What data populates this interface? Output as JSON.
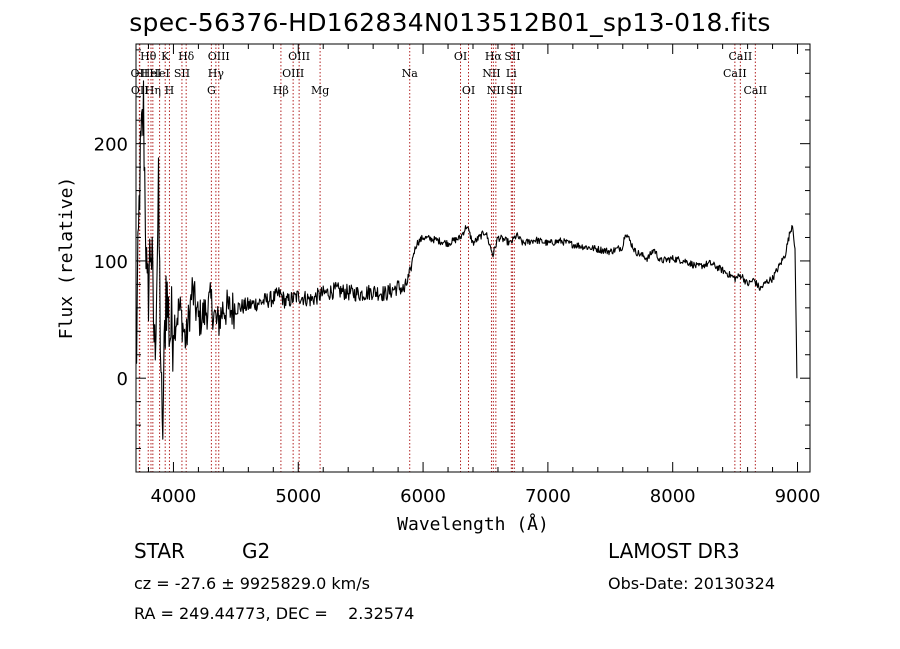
{
  "chart_data": {
    "type": "line",
    "title": "spec-56376-HD162834N013512B01_sp13-018.fits",
    "xlabel": "Wavelength (Å)",
    "ylabel": "Flux (relative)",
    "xlim": [
      3700,
      9100
    ],
    "ylim": [
      -80,
      285
    ],
    "xticks": [
      4000,
      5000,
      6000,
      7000,
      8000,
      9000
    ],
    "xtick_labels": [
      "4000",
      "5000",
      "6000",
      "7000",
      "8000",
      "9000"
    ],
    "yticks": [
      0,
      100,
      200
    ],
    "ytick_labels": [
      "0",
      "100",
      "200"
    ],
    "series": [
      {
        "name": "flux",
        "x": [
          3700,
          3730,
          3760,
          3790,
          3820,
          3850,
          3880,
          3910,
          3940,
          3970,
          4000,
          4050,
          4100,
          4150,
          4200,
          4250,
          4300,
          4350,
          4400,
          4450,
          4500,
          4600,
          4700,
          4800,
          4850,
          4900,
          5000,
          5100,
          5200,
          5300,
          5400,
          5500,
          5600,
          5700,
          5800,
          5850,
          5900,
          5920,
          5950,
          6000,
          6100,
          6200,
          6300,
          6350,
          6400,
          6450,
          6500,
          6560,
          6600,
          6650,
          6700,
          6750,
          6800,
          6900,
          7000,
          7100,
          7200,
          7300,
          7400,
          7500,
          7600,
          7620,
          7700,
          7800,
          7850,
          7900,
          8000,
          8100,
          8200,
          8300,
          8400,
          8500,
          8550,
          8600,
          8650,
          8700,
          8750,
          8800,
          8850,
          8900,
          8930,
          8960,
          8980,
          8995
        ],
        "y": [
          0,
          170,
          230,
          60,
          120,
          20,
          150,
          -60,
          80,
          40,
          45,
          60,
          30,
          75,
          50,
          55,
          65,
          45,
          60,
          58,
          60,
          62,
          65,
          68,
          72,
          65,
          70,
          67,
          72,
          75,
          73,
          72,
          74,
          72,
          78,
          75,
          90,
          105,
          115,
          120,
          118,
          115,
          120,
          130,
          115,
          120,
          125,
          105,
          120,
          118,
          115,
          122,
          115,
          118,
          115,
          117,
          114,
          112,
          110,
          108,
          112,
          125,
          108,
          102,
          110,
          100,
          102,
          100,
          95,
          98,
          92,
          85,
          88,
          80,
          84,
          76,
          82,
          85,
          95,
          105,
          120,
          132,
          110,
          0
        ]
      }
    ],
    "lines": [
      {
        "wl": 3727,
        "label": "OII",
        "row": 2
      },
      {
        "wl": 3730,
        "label": "OII",
        "row": 3
      },
      {
        "wl": 3798,
        "label": "Hθ",
        "row": 1
      },
      {
        "wl": 3820,
        "label": "HeI",
        "row": 2
      },
      {
        "wl": 3835,
        "label": "Hη",
        "row": 3
      },
      {
        "wl": 3889,
        "label": "HeI",
        "row": 2
      },
      {
        "wl": 3934,
        "label": "K",
        "row": 1
      },
      {
        "wl": 3968,
        "label": "H",
        "row": 3
      },
      {
        "wl": 4068,
        "label": "SII",
        "row": 2
      },
      {
        "wl": 4102,
        "label": "Hδ",
        "row": 1
      },
      {
        "wl": 4304,
        "label": "G",
        "row": 3
      },
      {
        "wl": 4340,
        "label": "Hγ",
        "row": 2
      },
      {
        "wl": 4363,
        "label": "OIII",
        "row": 1
      },
      {
        "wl": 4861,
        "label": "Hβ",
        "row": 3
      },
      {
        "wl": 4959,
        "label": "OIII",
        "row": 2
      },
      {
        "wl": 5007,
        "label": "OIII",
        "row": 1
      },
      {
        "wl": 5175,
        "label": "Mg",
        "row": 3
      },
      {
        "wl": 5893,
        "label": "Na",
        "row": 2
      },
      {
        "wl": 6300,
        "label": "OI",
        "row": 1
      },
      {
        "wl": 6364,
        "label": "OI",
        "row": 3
      },
      {
        "wl": 6548,
        "label": "NII",
        "row": 2
      },
      {
        "wl": 6563,
        "label": "Hα",
        "row": 1
      },
      {
        "wl": 6583,
        "label": "NII",
        "row": 3
      },
      {
        "wl": 6707,
        "label": "Li",
        "row": 2
      },
      {
        "wl": 6716,
        "label": "SII",
        "row": 1
      },
      {
        "wl": 6731,
        "label": "SII",
        "row": 3
      },
      {
        "wl": 8498,
        "label": "CaII",
        "row": 2
      },
      {
        "wl": 8542,
        "label": "CaII",
        "row": 1
      },
      {
        "wl": 8662,
        "label": "CaII",
        "row": 3
      }
    ]
  },
  "info": {
    "class": "STAR",
    "subclass": "G2",
    "survey": "LAMOST DR3",
    "cz": "cz = -27.6 ± 9925829.0 km/s",
    "obs_date": "Obs-Date: 20130324",
    "radec": "RA = 249.44773, DEC =    2.32574"
  }
}
